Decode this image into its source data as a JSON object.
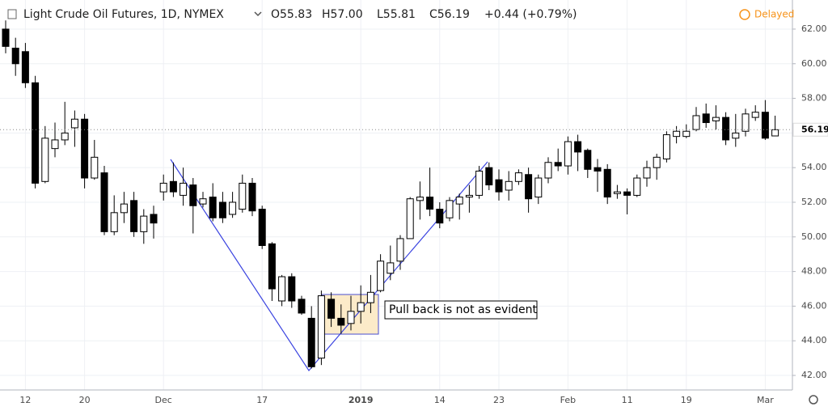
{
  "chart_data": {
    "type": "candlestick",
    "title": "Light Crude Oil Futures, 1D, NYMEX",
    "header_values": [
      "O55.83",
      "H57.00",
      "L55.81",
      "C56.19",
      "+0.44 (+0.79%)"
    ],
    "status": "Delayed",
    "annotation": "Pull back is not as evident",
    "price_label": {
      "value": 56.19,
      "label": "56.19"
    },
    "up_color": "#ffffff",
    "down_color": "#000000",
    "grid": true,
    "categories": [
      null,
      null,
      "12",
      null,
      null,
      null,
      null,
      null,
      "20",
      null,
      null,
      null,
      null,
      null,
      null,
      null,
      "Dec",
      null,
      null,
      null,
      null,
      null,
      null,
      null,
      null,
      null,
      "17",
      null,
      null,
      null,
      null,
      null,
      null,
      null,
      null,
      null,
      "2019",
      null,
      null,
      null,
      null,
      null,
      null,
      null,
      "14",
      null,
      null,
      null,
      null,
      null,
      "23",
      null,
      null,
      null,
      null,
      null,
      null,
      "Feb",
      null,
      null,
      null,
      null,
      null,
      "11",
      null,
      null,
      null,
      null,
      null,
      "19",
      null,
      null,
      null,
      null,
      null,
      null,
      null,
      "Mar",
      null
    ],
    "open": [
      62.0,
      60.9,
      60.7,
      58.9,
      53.2,
      55.1,
      55.6,
      56.3,
      56.8,
      53.4,
      53.7,
      50.3,
      51.4,
      52.1,
      50.3,
      51.3,
      52.6,
      53.2,
      52.4,
      53.0,
      51.9,
      52.3,
      52.0,
      51.3,
      51.6,
      53.1,
      51.6,
      49.6,
      46.3,
      47.7,
      46.4,
      45.3,
      43.0,
      46.4,
      45.3,
      45.0,
      45.7,
      46.2,
      46.9,
      47.9,
      48.6,
      49.9,
      52.1,
      52.3,
      51.6,
      51.1,
      51.9,
      52.3,
      52.4,
      54.0,
      53.3,
      52.7,
      53.2,
      53.6,
      52.3,
      53.4,
      54.3,
      54.1,
      55.5,
      55.0,
      54.0,
      53.9,
      52.5,
      52.6,
      52.4,
      53.4,
      54.0,
      54.5,
      55.8,
      55.8,
      56.2,
      57.1,
      56.7,
      56.9,
      55.7,
      56.1,
      56.9,
      57.2,
      55.83
    ],
    "high": [
      62.5,
      61.5,
      61.2,
      59.3,
      56.4,
      56.6,
      57.8,
      57.3,
      57.1,
      55.6,
      54.1,
      52.4,
      52.6,
      52.6,
      51.6,
      51.8,
      53.6,
      54.3,
      54.0,
      53.4,
      52.6,
      53.1,
      52.6,
      52.6,
      53.6,
      53.4,
      51.8,
      49.7,
      47.8,
      47.9,
      46.6,
      46.0,
      46.9,
      46.8,
      46.1,
      46.6,
      47.2,
      47.8,
      49.0,
      49.5,
      50.1,
      52.3,
      53.2,
      54.0,
      52.0,
      52.3,
      52.5,
      53.0,
      54.1,
      54.3,
      53.9,
      53.8,
      53.9,
      54.0,
      53.6,
      54.6,
      55.1,
      55.8,
      55.9,
      55.1,
      54.5,
      54.2,
      53.0,
      52.8,
      53.6,
      54.4,
      54.8,
      56.1,
      56.4,
      56.5,
      57.5,
      57.7,
      57.6,
      57.2,
      57.1,
      57.4,
      57.6,
      57.9,
      57.0
    ],
    "low": [
      60.6,
      59.3,
      58.6,
      52.8,
      53.1,
      54.6,
      55.3,
      55.2,
      52.8,
      53.3,
      50.1,
      50.1,
      50.8,
      50.0,
      49.6,
      49.9,
      52.1,
      52.3,
      51.8,
      50.2,
      51.7,
      50.9,
      50.8,
      51.1,
      51.4,
      51.2,
      49.3,
      46.3,
      46.0,
      45.9,
      45.5,
      42.4,
      42.6,
      44.8,
      44.4,
      44.6,
      45.0,
      45.6,
      46.8,
      47.5,
      48.1,
      49.9,
      51.0,
      51.2,
      50.5,
      50.9,
      51.0,
      51.4,
      52.2,
      52.7,
      52.1,
      52.1,
      53.0,
      51.4,
      51.9,
      53.1,
      53.8,
      53.6,
      53.8,
      53.4,
      52.6,
      51.9,
      52.2,
      51.3,
      52.3,
      52.9,
      53.3,
      54.3,
      55.4,
      55.7,
      56.1,
      56.3,
      56.2,
      55.3,
      55.2,
      55.8,
      56.7,
      55.6,
      55.81
    ],
    "close": [
      61.0,
      60.0,
      58.9,
      53.1,
      55.7,
      55.6,
      56.0,
      56.8,
      53.4,
      54.6,
      50.3,
      51.4,
      51.9,
      50.3,
      51.2,
      50.8,
      53.1,
      52.6,
      53.1,
      51.8,
      52.2,
      51.1,
      51.1,
      52.0,
      53.1,
      51.5,
      49.5,
      47.0,
      47.7,
      46.3,
      45.6,
      42.5,
      46.6,
      45.3,
      44.9,
      45.7,
      46.2,
      46.8,
      48.6,
      48.5,
      49.9,
      52.2,
      52.3,
      51.6,
      50.8,
      52.1,
      52.3,
      52.4,
      53.8,
      53.0,
      52.6,
      53.2,
      53.7,
      52.2,
      53.4,
      54.3,
      54.1,
      55.5,
      54.9,
      53.9,
      53.8,
      52.3,
      52.6,
      52.4,
      53.4,
      54.0,
      54.6,
      55.9,
      56.1,
      56.1,
      57.0,
      56.6,
      56.9,
      55.6,
      56.0,
      57.1,
      57.2,
      55.7,
      56.19
    ],
    "ylim": [
      41.16,
      63.68
    ],
    "yticks": [
      {
        "value": 42,
        "label": "42.00"
      },
      {
        "value": 44,
        "label": "44.00"
      },
      {
        "value": 46,
        "label": "46.00"
      },
      {
        "value": 48,
        "label": "48.00"
      },
      {
        "value": 50,
        "label": "50.00"
      },
      {
        "value": 52,
        "label": "52.00"
      },
      {
        "value": 54,
        "label": "54.00"
      },
      {
        "value": 56,
        "label": "56.00"
      },
      {
        "value": 58,
        "label": "58.00"
      },
      {
        "value": 60,
        "label": "60.00"
      },
      {
        "value": 62,
        "label": "62.00"
      }
    ]
  }
}
